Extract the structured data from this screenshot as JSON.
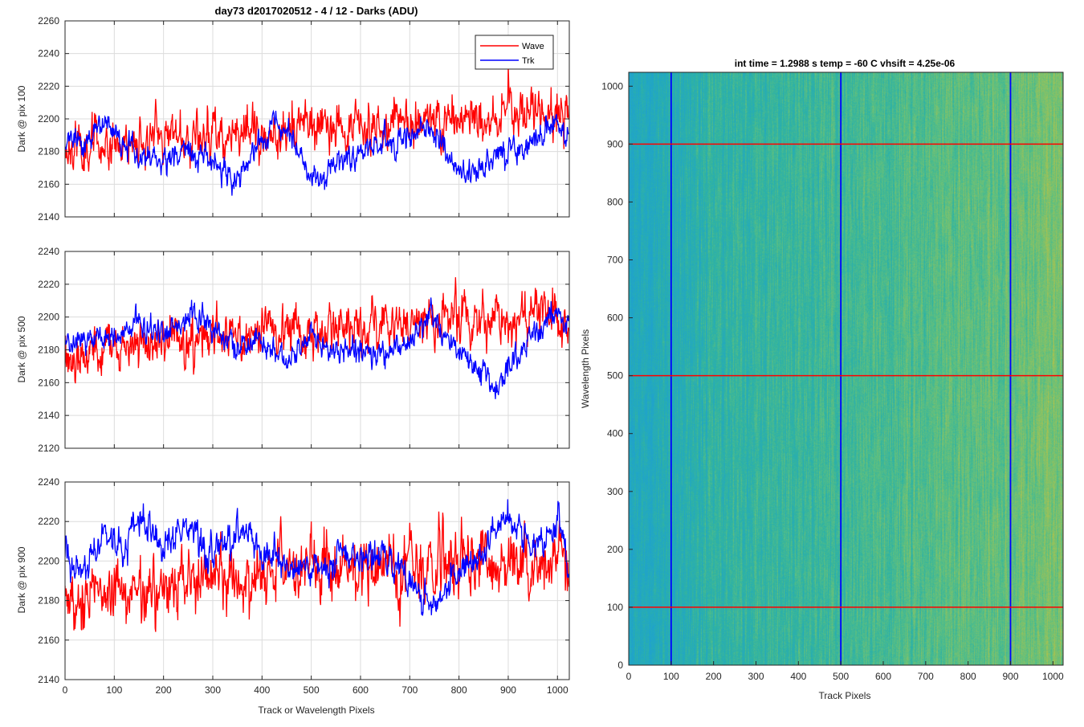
{
  "figure": {
    "background": "#ffffff",
    "colors": {
      "wave": "#ff0000",
      "trk": "#0000ff",
      "grid": "#dcdcdc",
      "axis": "#262626"
    }
  },
  "chart_data": [
    {
      "type": "line",
      "title": "day73 d2017020512 - 4 / 12 - Darks (ADU)",
      "xlabel": "",
      "ylabel": "Dark @ pix 100",
      "xlim": [
        0,
        1024
      ],
      "ylim": [
        2140,
        2260
      ],
      "xticks": [
        0,
        100,
        200,
        300,
        400,
        500,
        600,
        700,
        800,
        900,
        1000
      ],
      "yticks": [
        2140,
        2160,
        2180,
        2200,
        2220,
        2240,
        2260
      ],
      "xtick_labels": [
        "",
        "",
        "",
        "",
        "",
        "",
        "",
        "",
        "",
        "",
        ""
      ],
      "grid": true,
      "legend": {
        "location": "top-right",
        "entries": [
          "Wave",
          "Trk"
        ]
      },
      "series": [
        {
          "name": "Wave",
          "color": "#ff0000",
          "mean_anchors": [
            [
              0,
              2183
            ],
            [
              100,
              2186
            ],
            [
              200,
              2190
            ],
            [
              300,
              2191
            ],
            [
              400,
              2193
            ],
            [
              500,
              2196
            ],
            [
              600,
              2197
            ],
            [
              700,
              2198
            ],
            [
              800,
              2200
            ],
            [
              900,
              2201
            ],
            [
              1000,
              2205
            ],
            [
              1023,
              2198
            ]
          ],
          "noise_amp": 9,
          "seed": 11
        },
        {
          "name": "Trk",
          "color": "#0000ff",
          "mean_anchors": [
            [
              0,
              2185
            ],
            [
              40,
              2186
            ],
            [
              80,
              2195
            ],
            [
              110,
              2190
            ],
            [
              150,
              2176
            ],
            [
              200,
              2176
            ],
            [
              250,
              2180
            ],
            [
              300,
              2173
            ],
            [
              345,
              2160
            ],
            [
              380,
              2180
            ],
            [
              430,
              2196
            ],
            [
              480,
              2178
            ],
            [
              500,
              2160
            ],
            [
              540,
              2170
            ],
            [
              600,
              2180
            ],
            [
              650,
              2188
            ],
            [
              700,
              2190
            ],
            [
              740,
              2194
            ],
            [
              800,
              2170
            ],
            [
              820,
              2165
            ],
            [
              870,
              2178
            ],
            [
              930,
              2182
            ],
            [
              980,
              2192
            ],
            [
              1000,
              2200
            ],
            [
              1023,
              2185
            ]
          ],
          "noise_amp": 5,
          "seed": 23
        }
      ]
    },
    {
      "type": "line",
      "title": "",
      "xlabel": "",
      "ylabel": "Dark @ pix 500",
      "xlim": [
        0,
        1024
      ],
      "ylim": [
        2120,
        2240
      ],
      "xticks": [
        0,
        100,
        200,
        300,
        400,
        500,
        600,
        700,
        800,
        900,
        1000
      ],
      "yticks": [
        2120,
        2140,
        2160,
        2180,
        2200,
        2220,
        2240
      ],
      "xtick_labels": [
        "",
        "",
        "",
        "",
        "",
        "",
        "",
        "",
        "",
        "",
        ""
      ],
      "grid": true,
      "series": [
        {
          "name": "Wave",
          "color": "#ff0000",
          "mean_anchors": [
            [
              0,
              2178
            ],
            [
              100,
              2181
            ],
            [
              200,
              2184
            ],
            [
              300,
              2189
            ],
            [
              400,
              2192
            ],
            [
              500,
              2194
            ],
            [
              600,
              2196
            ],
            [
              700,
              2197
            ],
            [
              800,
              2199
            ],
            [
              900,
              2200
            ],
            [
              1000,
              2201
            ],
            [
              1023,
              2190
            ]
          ],
          "noise_amp": 9,
          "seed": 37
        },
        {
          "name": "Trk",
          "color": "#0000ff",
          "mean_anchors": [
            [
              0,
              2182
            ],
            [
              50,
              2188
            ],
            [
              100,
              2188
            ],
            [
              150,
              2195
            ],
            [
              200,
              2188
            ],
            [
              260,
              2205
            ],
            [
              300,
              2192
            ],
            [
              350,
              2182
            ],
            [
              400,
              2186
            ],
            [
              450,
              2172
            ],
            [
              500,
              2188
            ],
            [
              560,
              2175
            ],
            [
              600,
              2180
            ],
            [
              650,
              2178
            ],
            [
              700,
              2186
            ],
            [
              740,
              2203
            ],
            [
              800,
              2180
            ],
            [
              850,
              2168
            ],
            [
              870,
              2154
            ],
            [
              900,
              2168
            ],
            [
              950,
              2188
            ],
            [
              1000,
              2205
            ],
            [
              1023,
              2192
            ]
          ],
          "noise_amp": 5,
          "seed": 41
        }
      ]
    },
    {
      "type": "line",
      "title": "",
      "xlabel": "Track or Wavelength Pixels",
      "ylabel": "Dark @ pix 900",
      "xlim": [
        0,
        1024
      ],
      "ylim": [
        2140,
        2240
      ],
      "xticks": [
        0,
        100,
        200,
        300,
        400,
        500,
        600,
        700,
        800,
        900,
        1000
      ],
      "yticks": [
        2140,
        2160,
        2180,
        2200,
        2220,
        2240
      ],
      "xtick_labels": [
        "0",
        "100",
        "200",
        "300",
        "400",
        "500",
        "600",
        "700",
        "800",
        "900",
        "1000"
      ],
      "grid": true,
      "series": [
        {
          "name": "Wave",
          "color": "#ff0000",
          "mean_anchors": [
            [
              0,
              2180
            ],
            [
              100,
              2183
            ],
            [
              200,
              2188
            ],
            [
              300,
              2191
            ],
            [
              400,
              2193
            ],
            [
              500,
              2196
            ],
            [
              600,
              2197
            ],
            [
              700,
              2198
            ],
            [
              800,
              2199
            ],
            [
              900,
              2200
            ],
            [
              1000,
              2201
            ],
            [
              1023,
              2194
            ]
          ],
          "noise_amp": 10,
          "seed": 53
        },
        {
          "name": "Trk",
          "color": "#0000ff",
          "mean_anchors": [
            [
              0,
              2205
            ],
            [
              20,
              2195
            ],
            [
              50,
              2200
            ],
            [
              80,
              2215
            ],
            [
              110,
              2205
            ],
            [
              150,
              2222
            ],
            [
              200,
              2203
            ],
            [
              250,
              2218
            ],
            [
              300,
              2200
            ],
            [
              350,
              2215
            ],
            [
              400,
              2205
            ],
            [
              450,
              2198
            ],
            [
              500,
              2196
            ],
            [
              540,
              2195
            ],
            [
              560,
              2206
            ],
            [
              600,
              2203
            ],
            [
              650,
              2200
            ],
            [
              700,
              2192
            ],
            [
              750,
              2176
            ],
            [
              800,
              2195
            ],
            [
              850,
              2203
            ],
            [
              890,
              2225
            ],
            [
              950,
              2210
            ],
            [
              1000,
              2220
            ],
            [
              1023,
              2202
            ]
          ],
          "noise_amp": 5,
          "seed": 67
        }
      ]
    },
    {
      "type": "heatmap",
      "title": "int time = 1.2988 s    temp = -60 C    vhsift = 4.25e-06",
      "xlabel": "Track Pixels",
      "ylabel": "Wavelength Pixels",
      "xlim": [
        0,
        1024
      ],
      "ylim": [
        0,
        1024
      ],
      "xticks": [
        0,
        100,
        200,
        300,
        400,
        500,
        600,
        700,
        800,
        900,
        1000
      ],
      "yticks": [
        0,
        100,
        200,
        300,
        400,
        500,
        600,
        700,
        800,
        900,
        1000
      ],
      "xtick_labels": [
        "0",
        "100",
        "200",
        "300",
        "400",
        "500",
        "600",
        "700",
        "800",
        "900",
        "1000"
      ],
      "ytick_labels": [
        "0",
        "100",
        "200",
        "300",
        "400",
        "500",
        "600",
        "700",
        "800",
        "900",
        "1000"
      ],
      "colormap": [
        "#1f9fd2",
        "#22a8c1",
        "#30b3a2",
        "#5bbf82",
        "#96c25c",
        "#c8bf3c"
      ],
      "trend_x_anchors": [
        [
          0,
          0.22
        ],
        [
          100,
          0.28
        ],
        [
          200,
          0.38
        ],
        [
          300,
          0.4
        ],
        [
          400,
          0.43
        ],
        [
          500,
          0.47
        ],
        [
          600,
          0.5
        ],
        [
          700,
          0.55
        ],
        [
          800,
          0.58
        ],
        [
          900,
          0.62
        ],
        [
          1000,
          0.7
        ],
        [
          1024,
          0.72
        ]
      ],
      "marker_lines_vertical": {
        "color": "#0000ff",
        "x": [
          100,
          500,
          900
        ]
      },
      "marker_lines_horizontal": {
        "color": "#ff0000",
        "y": [
          100,
          500,
          900
        ]
      },
      "seed": 97
    }
  ]
}
